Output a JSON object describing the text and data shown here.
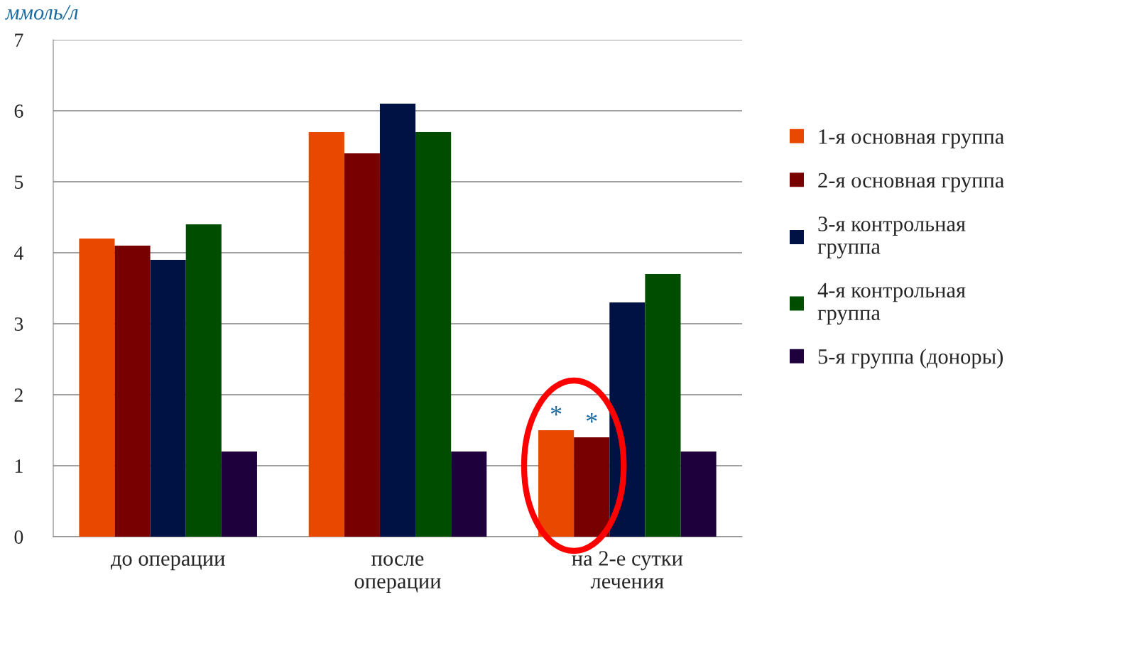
{
  "chart_data": {
    "type": "bar",
    "ylabel": "ммоль/л",
    "categories": [
      "до операции",
      "после\nоперации",
      "на 2-е сутки\nлечения"
    ],
    "series": [
      {
        "name": "1-я основная группа",
        "color": "#e84800",
        "values": [
          4.2,
          5.7,
          1.5
        ]
      },
      {
        "name": "2-я основная группа",
        "color": "#780000",
        "values": [
          4.1,
          5.4,
          1.4
        ]
      },
      {
        "name": "3-я контрольная\nгруппа",
        "color": "#001244",
        "values": [
          3.9,
          6.1,
          3.3
        ]
      },
      {
        "name": "4-я контрольная\nгруппа",
        "color": "#004d00",
        "values": [
          4.4,
          5.7,
          3.7
        ]
      },
      {
        "name": "5-я группа (доноры)",
        "color": "#1e003c",
        "values": [
          1.2,
          1.2,
          1.2
        ]
      }
    ],
    "ylim": [
      0,
      7
    ],
    "yticks": [
      0,
      1,
      2,
      3,
      4,
      5,
      6,
      7
    ],
    "grid": "y",
    "legend": "right",
    "annotations": [
      "*",
      "*"
    ]
  }
}
